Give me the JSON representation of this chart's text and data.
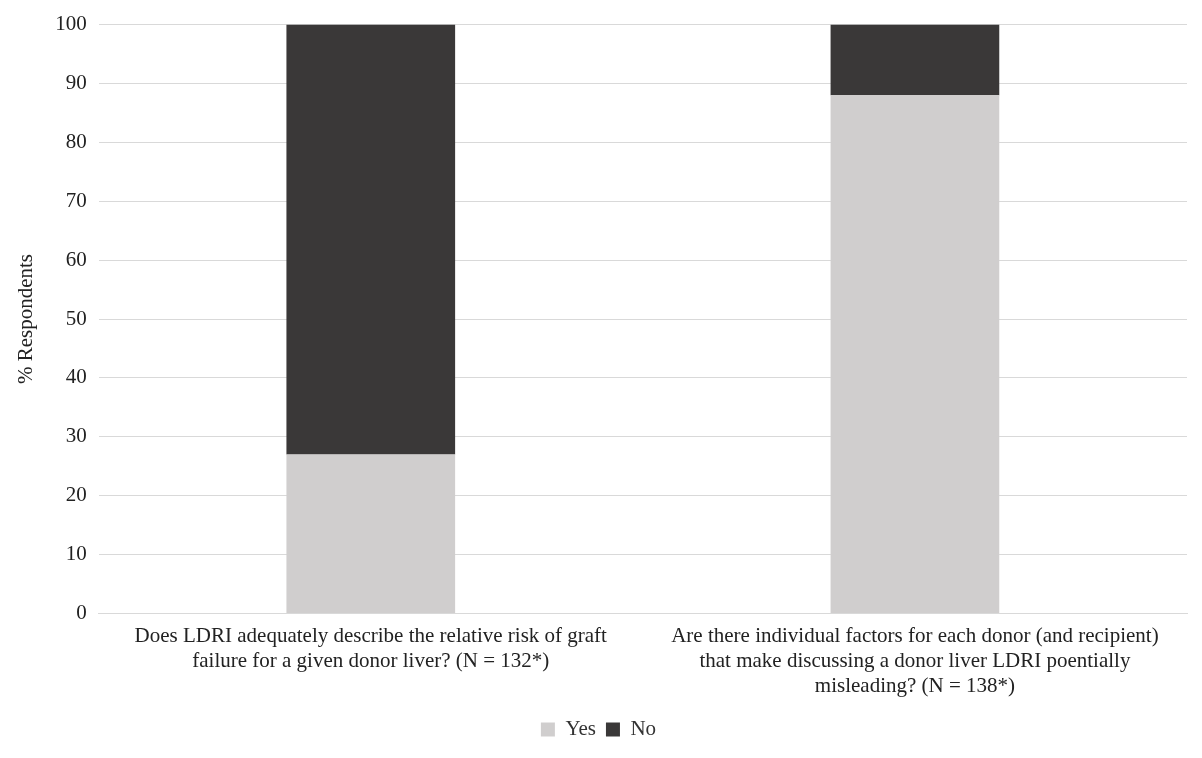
{
  "chart_data": {
    "type": "bar",
    "ylabel": "% Respondents",
    "categories": [
      "Does LDRI adequately describe the relative risk of graft failure for a given donor liver? (N = 132*)",
      "Are there individual factors for each donor (and recipient) that make discussing a donor liver LDRI poentially misleading? (N = 138*)"
    ],
    "series": [
      {
        "name": "Yes",
        "color": "#d0cece",
        "values": [
          27,
          88
        ]
      },
      {
        "name": "No",
        "color": "#3a3838",
        "values": [
          73,
          12
        ]
      }
    ],
    "stacked": true,
    "ylim": [
      0,
      100
    ],
    "yticks": [
      0,
      10,
      20,
      30,
      40,
      50,
      60,
      70,
      80,
      90,
      100
    ],
    "grid": "y",
    "legend": "bottom"
  }
}
